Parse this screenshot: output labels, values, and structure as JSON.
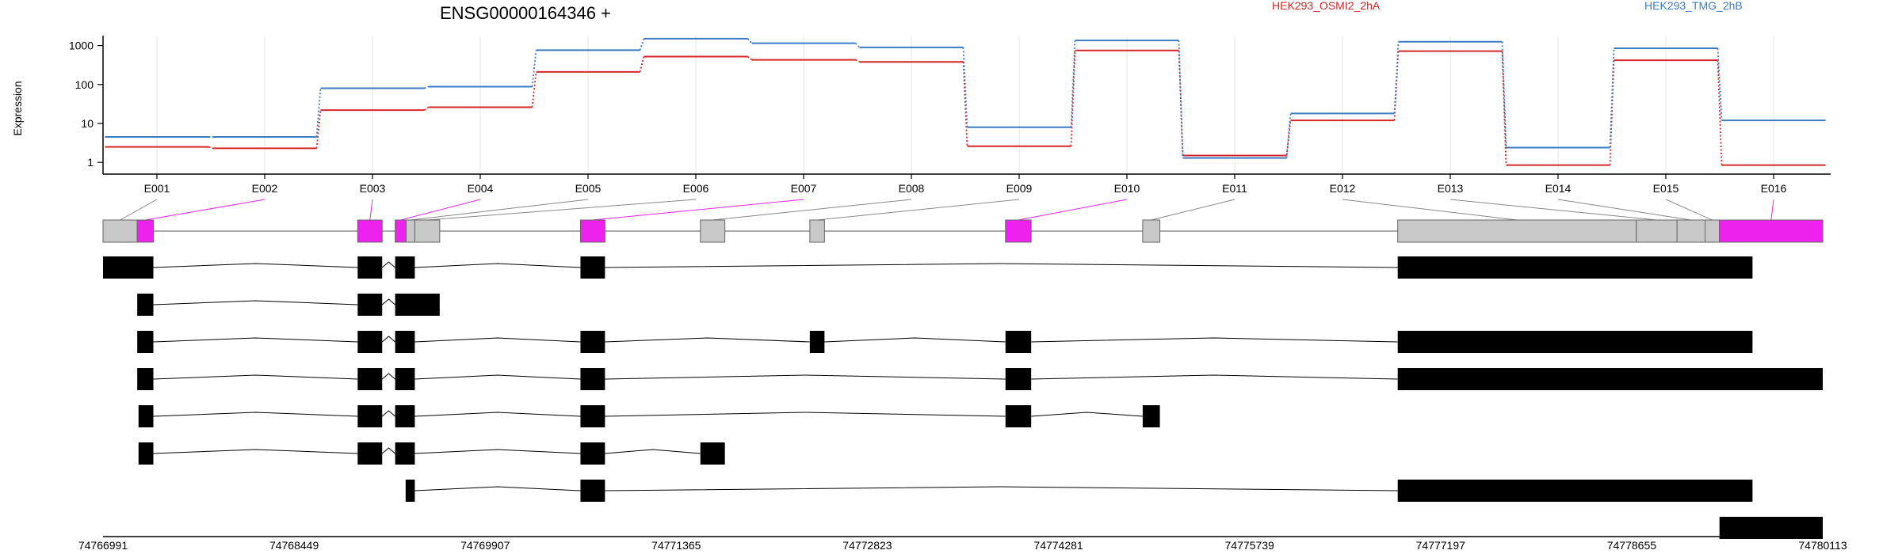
{
  "gene_title": "ENSG00000164346 +",
  "colors": {
    "series_red": "#d62728",
    "series_blue": "#3a7cc4",
    "highlight": "#ee22ee",
    "exon_grey": "#c8c8c8",
    "transcript": "#000000",
    "grid": "#e6e6e6"
  },
  "chart_data": {
    "type": "line",
    "title": "ENSG00000164346 +",
    "xlabel": "",
    "ylabel": "Expression",
    "yscale": "log",
    "ylim": [
      0.5,
      1800
    ],
    "yticks": [
      1,
      10,
      100,
      1000
    ],
    "ytick_labels": [
      "1",
      "10",
      "100",
      "1000"
    ],
    "legend_placement": "top-right",
    "grid": true,
    "categories": [
      "E001",
      "E002",
      "E003",
      "E004",
      "E005",
      "E006",
      "E007",
      "E008",
      "E009",
      "E010",
      "E011",
      "E012",
      "E013",
      "E014",
      "E015",
      "E016"
    ],
    "series": [
      {
        "name": "HEK293_OSMI2_2hA",
        "color": "#d62728",
        "values": [
          2.5,
          2.3,
          22,
          26,
          210,
          520,
          430,
          380,
          2.6,
          750,
          1.5,
          12,
          720,
          0.85,
          420,
          0.85
        ]
      },
      {
        "name": "HEK293_TMG_2hB",
        "color": "#3a7cc4",
        "values": [
          4.5,
          4.5,
          80,
          88,
          760,
          1500,
          1150,
          900,
          8,
          1350,
          1.3,
          18,
          1250,
          2.4,
          850,
          12
        ]
      }
    ]
  },
  "gene_model": {
    "exon_ids": [
      "E001",
      "E002",
      "E003",
      "E004",
      "E005",
      "E006",
      "E007",
      "E008",
      "E009",
      "E010",
      "E011",
      "E012",
      "E013",
      "E014",
      "E015",
      "E016"
    ],
    "coord_start": 74766991,
    "coord_end": 74780113,
    "coord_ticks": [
      74766991,
      74768449,
      74769907,
      74771365,
      74772823,
      74774281,
      74775739,
      74777197,
      74778655,
      74780113
    ],
    "coord_labels": [
      "74766991",
      "74768449",
      "74769907",
      "74771365",
      "74772823",
      "74774281",
      "74775739",
      "74777197",
      "74778655",
      "74780113"
    ],
    "exons": [
      {
        "id": "E001",
        "start": 74766991,
        "end": 74767252,
        "highlight": false
      },
      {
        "id": "E002",
        "start": 74767252,
        "end": 74767375,
        "highlight": true
      },
      {
        "id": "E003",
        "start": 74768934,
        "end": 74769121,
        "highlight": true
      },
      {
        "id": "E004",
        "start": 74769220,
        "end": 74769304,
        "highlight": true
      },
      {
        "id": "E005",
        "start": 74769304,
        "end": 74769370,
        "highlight": false
      },
      {
        "id": "E006",
        "start": 74769370,
        "end": 74769560,
        "highlight": false
      },
      {
        "id": "E007",
        "start": 74770634,
        "end": 74770821,
        "highlight": true
      },
      {
        "id": "E008",
        "start": 74771549,
        "end": 74771736,
        "highlight": false
      },
      {
        "id": "E009",
        "start": 74772384,
        "end": 74772496,
        "highlight": false
      },
      {
        "id": "E010",
        "start": 74773877,
        "end": 74774073,
        "highlight": true
      },
      {
        "id": "E011",
        "start": 74774924,
        "end": 74775055,
        "highlight": false
      },
      {
        "id": "E012",
        "start": 74776870,
        "end": 74778690,
        "highlight": false
      },
      {
        "id": "E013",
        "start": 74778690,
        "end": 74779001,
        "highlight": false
      },
      {
        "id": "E014",
        "start": 74779001,
        "end": 74779215,
        "highlight": false
      },
      {
        "id": "E015",
        "start": 74779215,
        "end": 74779325,
        "highlight": false
      },
      {
        "id": "E016",
        "start": 74779325,
        "end": 74780113,
        "highlight": true
      }
    ],
    "transcripts": [
      [
        [
          74766991,
          74767375
        ],
        [
          74768934,
          74769121
        ],
        [
          74769220,
          74769370
        ],
        [
          74770634,
          74770821
        ],
        [
          74776870,
          74779577
        ]
      ],
      [
        [
          74767252,
          74767375
        ],
        [
          74768934,
          74769121
        ],
        [
          74769220,
          74769560
        ]
      ],
      [
        [
          74767252,
          74767375
        ],
        [
          74768934,
          74769121
        ],
        [
          74769220,
          74769370
        ],
        [
          74770634,
          74770821
        ],
        [
          74772384,
          74772496
        ],
        [
          74773877,
          74774073
        ],
        [
          74776870,
          74779577
        ]
      ],
      [
        [
          74767252,
          74767375
        ],
        [
          74768934,
          74769121
        ],
        [
          74769220,
          74769370
        ],
        [
          74770634,
          74770821
        ],
        [
          74773877,
          74774073
        ],
        [
          74776870,
          74780113
        ]
      ],
      [
        [
          74767262,
          74767375
        ],
        [
          74768934,
          74769121
        ],
        [
          74769220,
          74769370
        ],
        [
          74770634,
          74770821
        ],
        [
          74773877,
          74774073
        ],
        [
          74774924,
          74775055
        ]
      ],
      [
        [
          74767262,
          74767375
        ],
        [
          74768934,
          74769121
        ],
        [
          74769220,
          74769370
        ],
        [
          74770634,
          74770821
        ],
        [
          74771549,
          74771736
        ]
      ],
      [
        [
          74769300,
          74769370
        ],
        [
          74770634,
          74770821
        ],
        [
          74776870,
          74779577
        ]
      ],
      [
        [
          74779325,
          74780113
        ]
      ]
    ]
  }
}
